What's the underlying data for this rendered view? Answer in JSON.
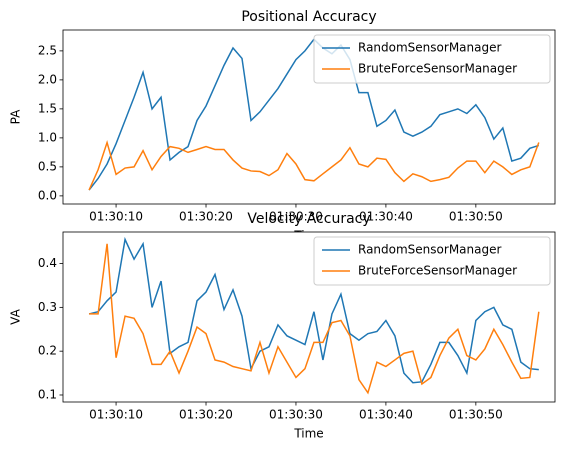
{
  "chart_data": [
    {
      "type": "line",
      "title": "Positional Accuracy",
      "xlabel": "Time",
      "ylabel": "PA",
      "x": [
        "01:30:07",
        "01:30:08",
        "01:30:09",
        "01:30:10",
        "01:30:11",
        "01:30:12",
        "01:30:13",
        "01:30:14",
        "01:30:15",
        "01:30:16",
        "01:30:17",
        "01:30:18",
        "01:30:19",
        "01:30:20",
        "01:30:21",
        "01:30:22",
        "01:30:23",
        "01:30:24",
        "01:30:25",
        "01:30:26",
        "01:30:27",
        "01:30:28",
        "01:30:29",
        "01:30:30",
        "01:30:31",
        "01:30:32",
        "01:30:33",
        "01:30:34",
        "01:30:35",
        "01:30:36",
        "01:30:37",
        "01:30:38",
        "01:30:39",
        "01:30:40",
        "01:30:41",
        "01:30:42",
        "01:30:43",
        "01:30:44",
        "01:30:45",
        "01:30:46",
        "01:30:47",
        "01:30:48",
        "01:30:49",
        "01:30:50",
        "01:30:51",
        "01:30:52",
        "01:30:53",
        "01:30:54",
        "01:30:55",
        "01:30:56",
        "01:30:57"
      ],
      "xlim": [
        "01:30:04.1",
        "01:30:58.8"
      ],
      "xticks": [
        "01:30:10",
        "01:30:20",
        "01:30:30",
        "01:30:40",
        "01:30:50"
      ],
      "ylim": [
        -0.14,
        2.86
      ],
      "yticks": [
        {
          "value": 0,
          "label": "0.0"
        },
        0.5,
        {
          "value": 1,
          "label": "1.0"
        },
        1.5,
        {
          "value": 2,
          "label": "2.0"
        },
        2.5
      ],
      "legend": "upper right",
      "series": [
        {
          "name": "RandomSensorManager",
          "color": "#1f77b4",
          "values": [
            0.1,
            0.3,
            0.55,
            0.9,
            1.3,
            1.7,
            2.13,
            1.5,
            1.7,
            0.62,
            0.75,
            0.85,
            1.3,
            1.55,
            1.9,
            2.25,
            2.55,
            2.37,
            1.3,
            1.45,
            1.65,
            1.85,
            2.1,
            2.35,
            2.5,
            2.7,
            2.55,
            2.45,
            2.6,
            2.35,
            1.78,
            1.78,
            1.2,
            1.3,
            1.48,
            1.1,
            1.03,
            1.1,
            1.2,
            1.4,
            1.45,
            1.5,
            1.42,
            1.57,
            1.35,
            0.98,
            1.17,
            0.6,
            0.65,
            0.82,
            0.87
          ]
        },
        {
          "name": "BruteForceSensorManager",
          "color": "#ff7f0e",
          "values": [
            0.1,
            0.45,
            0.92,
            0.37,
            0.48,
            0.5,
            0.78,
            0.45,
            0.68,
            0.85,
            0.82,
            0.75,
            0.8,
            0.85,
            0.8,
            0.8,
            0.62,
            0.48,
            0.43,
            0.42,
            0.35,
            0.45,
            0.73,
            0.55,
            0.28,
            0.26,
            0.38,
            0.5,
            0.62,
            0.83,
            0.55,
            0.5,
            0.65,
            0.63,
            0.4,
            0.25,
            0.38,
            0.33,
            0.25,
            0.28,
            0.32,
            0.48,
            0.6,
            0.6,
            0.4,
            0.6,
            0.5,
            0.37,
            0.45,
            0.5,
            0.92
          ]
        }
      ]
    },
    {
      "type": "line",
      "title": "Velocity Accuracy",
      "xlabel": "Time",
      "ylabel": "VA",
      "x": [
        "01:30:07",
        "01:30:08",
        "01:30:09",
        "01:30:10",
        "01:30:11",
        "01:30:12",
        "01:30:13",
        "01:30:14",
        "01:30:15",
        "01:30:16",
        "01:30:17",
        "01:30:18",
        "01:30:19",
        "01:30:20",
        "01:30:21",
        "01:30:22",
        "01:30:23",
        "01:30:24",
        "01:30:25",
        "01:30:26",
        "01:30:27",
        "01:30:28",
        "01:30:29",
        "01:30:30",
        "01:30:31",
        "01:30:32",
        "01:30:33",
        "01:30:34",
        "01:30:35",
        "01:30:36",
        "01:30:37",
        "01:30:38",
        "01:30:39",
        "01:30:40",
        "01:30:41",
        "01:30:42",
        "01:30:43",
        "01:30:44",
        "01:30:45",
        "01:30:46",
        "01:30:47",
        "01:30:48",
        "01:30:49",
        "01:30:50",
        "01:30:51",
        "01:30:52",
        "01:30:53",
        "01:30:54",
        "01:30:55",
        "01:30:56",
        "01:30:57"
      ],
      "xlim": [
        "01:30:04.1",
        "01:30:58.8"
      ],
      "xticks": [
        "01:30:10",
        "01:30:20",
        "01:30:30",
        "01:30:40",
        "01:30:50"
      ],
      "ylim": [
        0.084,
        0.472
      ],
      "yticks": [
        0.1,
        0.2,
        0.3,
        0.4
      ],
      "legend": "upper right",
      "series": [
        {
          "name": "RandomSensorManager",
          "color": "#1f77b4",
          "values": [
            0.285,
            0.29,
            0.315,
            0.335,
            0.455,
            0.41,
            0.445,
            0.3,
            0.36,
            0.195,
            0.21,
            0.22,
            0.315,
            0.335,
            0.375,
            0.295,
            0.34,
            0.28,
            0.16,
            0.2,
            0.21,
            0.26,
            0.235,
            0.225,
            0.215,
            0.29,
            0.18,
            0.285,
            0.33,
            0.24,
            0.225,
            0.24,
            0.245,
            0.27,
            0.235,
            0.15,
            0.128,
            0.13,
            0.17,
            0.22,
            0.22,
            0.19,
            0.15,
            0.27,
            0.29,
            0.3,
            0.26,
            0.25,
            0.175,
            0.16,
            0.158
          ]
        },
        {
          "name": "BruteForceSensorManager",
          "color": "#ff7f0e",
          "values": [
            0.285,
            0.285,
            0.445,
            0.185,
            0.28,
            0.275,
            0.24,
            0.17,
            0.17,
            0.2,
            0.15,
            0.2,
            0.255,
            0.24,
            0.18,
            0.175,
            0.165,
            0.16,
            0.155,
            0.22,
            0.15,
            0.21,
            0.175,
            0.14,
            0.16,
            0.22,
            0.22,
            0.265,
            0.27,
            0.235,
            0.135,
            0.105,
            0.175,
            0.165,
            0.18,
            0.195,
            0.2,
            0.125,
            0.14,
            0.19,
            0.23,
            0.25,
            0.19,
            0.18,
            0.205,
            0.25,
            0.215,
            0.175,
            0.138,
            0.14,
            0.29
          ]
        }
      ]
    }
  ]
}
